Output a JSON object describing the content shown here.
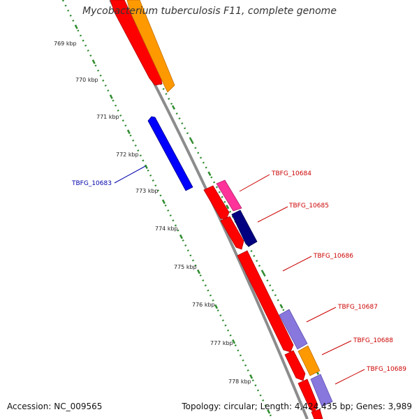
{
  "title": "Mycobacterium tuberculosis F11, complete genome",
  "footer": {
    "accession": "Accession: NC_009565",
    "topology": "Topology: circular; Length: 4,424,435 bp; Genes: 3,989"
  },
  "scale_labels": [
    "769 kbp",
    "770 kbp",
    "771 kbp",
    "772 kbp",
    "773 kbp",
    "774 kbp",
    "775 kbp",
    "776 kbp",
    "777 kbp",
    "778 kbp"
  ],
  "colors": {
    "backbone": "#8c8c8c",
    "scale_ticks": "#2e8b2e",
    "label_reverse": "#0000aa",
    "label_forward": "#cc0000",
    "red": "#ff0000",
    "orange": "#ff9900",
    "blue": "#0000ff",
    "magenta": "#ff3399",
    "navy": "#000080",
    "lavender": "#8877dd"
  },
  "genes": [
    {
      "name": "TBFG_10683",
      "strand": "reverse",
      "color": "#0000ff"
    },
    {
      "name": "TBFG_10684",
      "strand": "forward",
      "color": "#ff3399"
    },
    {
      "name": "TBFG_10685",
      "strand": "forward",
      "color": "#000080"
    },
    {
      "name": "TBFG_10686",
      "strand": "forward",
      "color": "#ff0000"
    },
    {
      "name": "TBFG_10687",
      "strand": "forward",
      "color": "#8877dd"
    },
    {
      "name": "TBFG_10688",
      "strand": "forward",
      "color": "#ff9900"
    },
    {
      "name": "TBFG_10689",
      "strand": "forward",
      "color": "#8877dd"
    }
  ]
}
